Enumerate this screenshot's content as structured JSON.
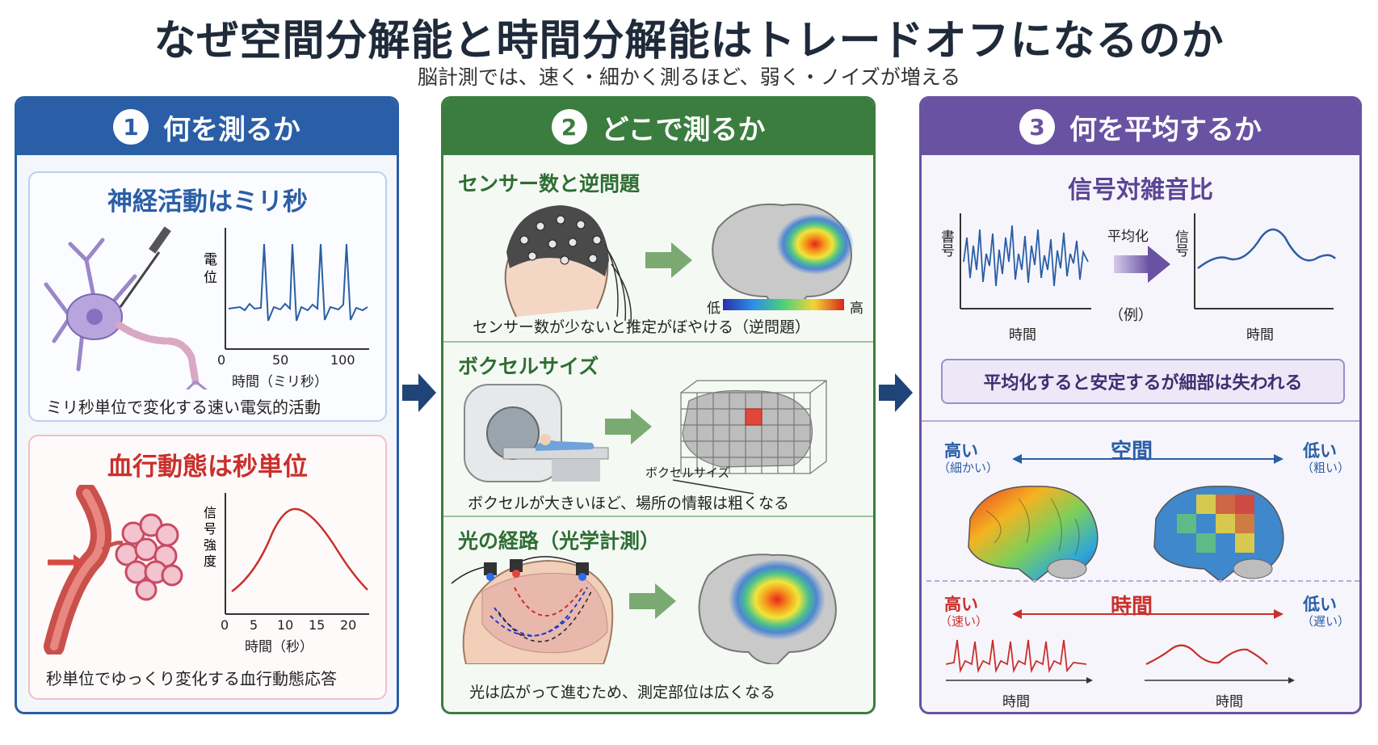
{
  "title": "なぜ空間分解能と時間分解能はトレードオフになるのか",
  "subtitle": "脳計測では、速く・細かく測るほど、弱く・ノイズが増える",
  "colors": {
    "blue": "#2a5ea6",
    "green": "#3b7d3f",
    "purple": "#6a52a3",
    "red": "#c9302c"
  },
  "panel1": {
    "number": "1",
    "title": "何を測るか",
    "neural": {
      "title": "神経活動はミリ秒",
      "ylabel": "電位",
      "xlabel": "時間（ミリ秒）",
      "xticks": [
        "0",
        "50",
        "100"
      ],
      "caption": "ミリ秒単位で変化する速い電気的活動"
    },
    "hemo": {
      "title": "血行動態は秒単位",
      "ylabel": "信号強度",
      "xlabel": "時間（秒）",
      "xticks": [
        "0",
        "5",
        "10",
        "15",
        "20"
      ],
      "caption": "秒単位でゆっくり変化する血行動態応答"
    }
  },
  "panel2": {
    "number": "2",
    "title": "どこで測るか",
    "sensors": {
      "title": "センサー数と逆問題",
      "low": "低",
      "high": "高",
      "caption": "センサー数が少ないと推定がぼやける（逆問題）"
    },
    "voxel": {
      "title": "ボクセルサイズ",
      "label": "ボクセルサイズ",
      "caption": "ボクセルが大きいほど、場所の情報は粗くなる"
    },
    "optical": {
      "title": "光の経路（光学計測）",
      "caption": "光は広がって進むため、測定部位は広くなる"
    }
  },
  "panel3": {
    "number": "3",
    "title": "何を平均するか",
    "snr": {
      "title": "信号対雑音比",
      "noisy_ylabel": "書号",
      "clean_ylabel": "信号",
      "xlabel_left": "時間",
      "xlabel_right": "時間",
      "avg_label": "平均化",
      "example": "（例）",
      "note": "平均化すると安定するが細部は失われる"
    },
    "space": {
      "label": "空間",
      "high": "高い",
      "high_sub": "（細かい）",
      "low": "低い",
      "low_sub": "（粗い）"
    },
    "time": {
      "label": "時間",
      "high": "高い",
      "high_sub": "（速い）",
      "low": "低い",
      "low_sub": "（遅い）",
      "xlabel_left": "時間",
      "xlabel_right": "時間"
    }
  }
}
